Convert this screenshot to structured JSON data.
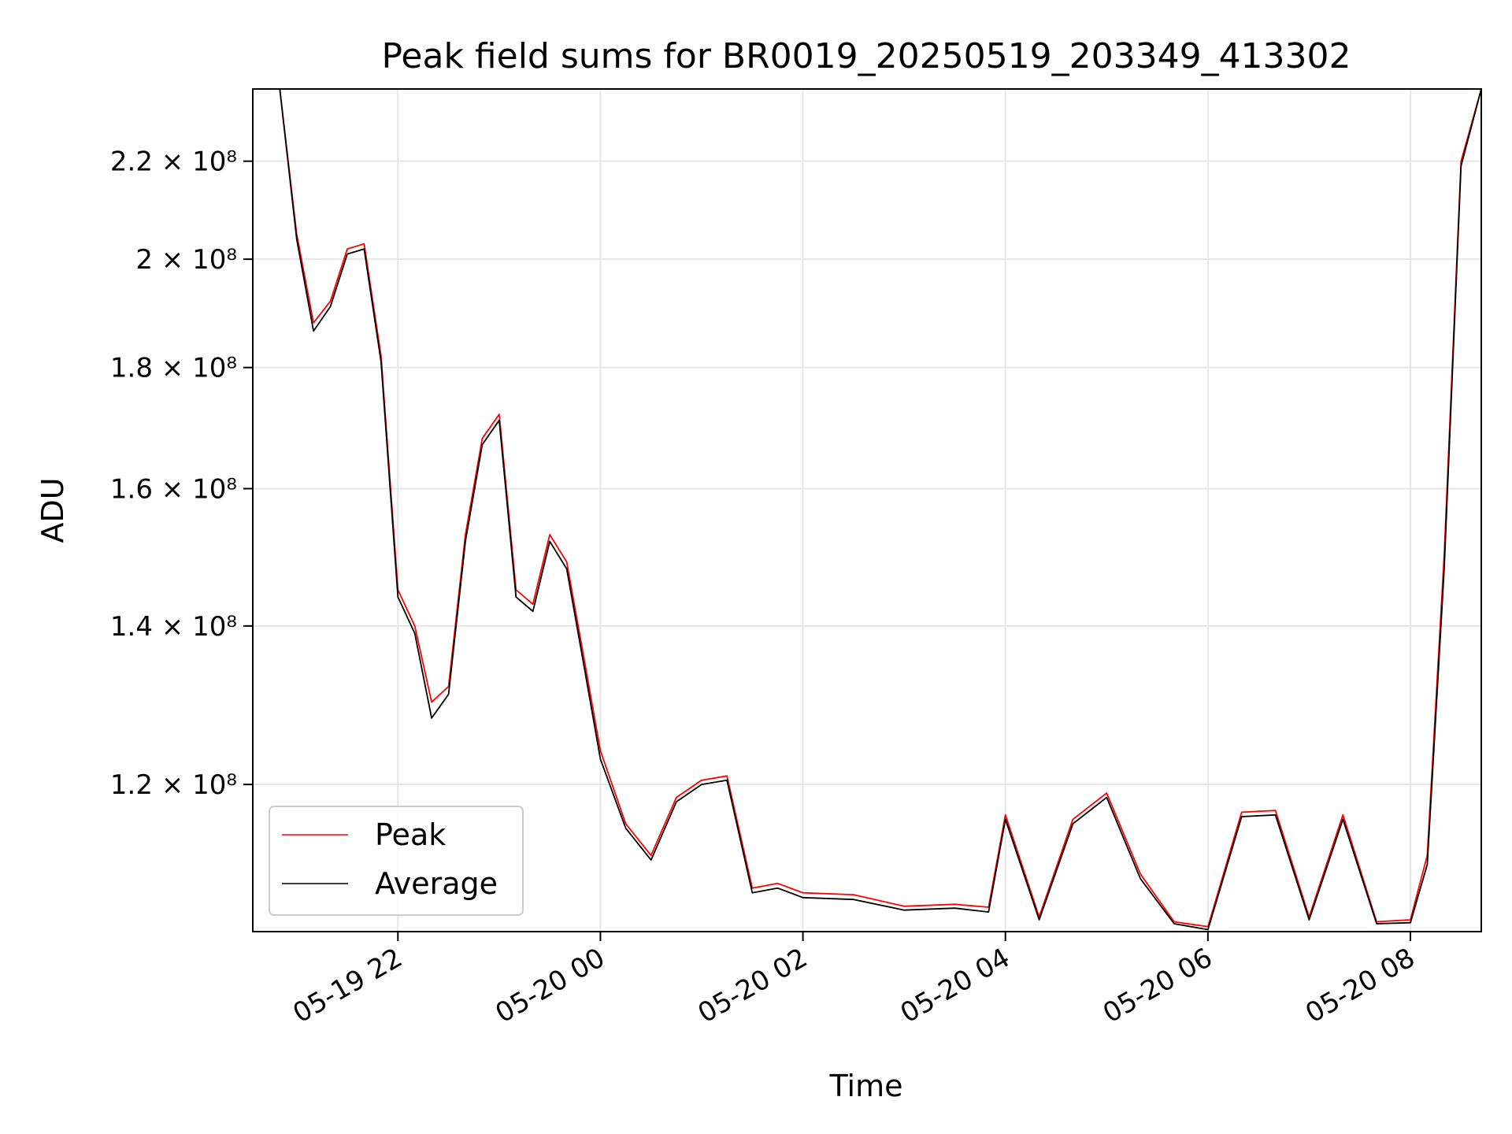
{
  "chart_data": {
    "type": "line",
    "title": "Peak field sums for BR0019_20250519_203349_413302",
    "xlabel": "Time",
    "ylabel": "ADU",
    "yscale": "log",
    "xlim": [
      "2025-05-19 20:34",
      "2025-05-20 08:42"
    ],
    "ylim": [
      104000000,
      236000000
    ],
    "x_ticks": [
      "05-19 22",
      "05-20 00",
      "05-20 02",
      "05-20 04",
      "05-20 06",
      "05-20 08"
    ],
    "y_ticks": [
      {
        "value": 120000000,
        "label": "1.2 × 10⁸"
      },
      {
        "value": 140000000,
        "label": "1.4 × 10⁸"
      },
      {
        "value": 160000000,
        "label": "1.6 × 10⁸"
      },
      {
        "value": 180000000,
        "label": "1.8 × 10⁸"
      },
      {
        "value": 200000000,
        "label": "2 × 10⁸"
      },
      {
        "value": 220000000,
        "label": "2.2 × 10⁸"
      }
    ],
    "grid": true,
    "legend_position": "lower-left",
    "series": [
      {
        "name": "Peak",
        "color": "#ff0000",
        "x": [
          "2025-05-19 20:34",
          "2025-05-19 20:50",
          "2025-05-19 21:00",
          "2025-05-19 21:10",
          "2025-05-19 21:20",
          "2025-05-19 21:30",
          "2025-05-19 21:40",
          "2025-05-19 21:50",
          "2025-05-19 22:00",
          "2025-05-19 22:10",
          "2025-05-19 22:20",
          "2025-05-19 22:30",
          "2025-05-19 22:40",
          "2025-05-19 22:50",
          "2025-05-19 23:00",
          "2025-05-19 23:10",
          "2025-05-19 23:20",
          "2025-05-19 23:30",
          "2025-05-19 23:40",
          "2025-05-19 23:50",
          "2025-05-20 00:00",
          "2025-05-20 00:15",
          "2025-05-20 00:30",
          "2025-05-20 00:45",
          "2025-05-20 01:00",
          "2025-05-20 01:15",
          "2025-05-20 01:30",
          "2025-05-20 01:45",
          "2025-05-20 02:00",
          "2025-05-20 02:30",
          "2025-05-20 03:00",
          "2025-05-20 03:30",
          "2025-05-20 03:50",
          "2025-05-20 04:00",
          "2025-05-20 04:20",
          "2025-05-20 04:40",
          "2025-05-20 05:00",
          "2025-05-20 05:20",
          "2025-05-20 05:40",
          "2025-05-20 06:00",
          "2025-05-20 06:20",
          "2025-05-20 06:40",
          "2025-05-20 07:00",
          "2025-05-20 07:20",
          "2025-05-20 07:40",
          "2025-05-20 08:00",
          "2025-05-20 08:10",
          "2025-05-20 08:20",
          "2025-05-20 08:30",
          "2025-05-20 08:42"
        ],
        "values": [
          236000000,
          236000000,
          205000000,
          188000000,
          192000000,
          202000000,
          203000000,
          182000000,
          145000000,
          140000000,
          130000000,
          132000000,
          153000000,
          168000000,
          172000000,
          145000000,
          143000000,
          153000000,
          149000000,
          136000000,
          124000000,
          115500000,
          112000000,
          118500000,
          120500000,
          121000000,
          108500000,
          109000000,
          108000000,
          107800000,
          106600000,
          106800000,
          106500000,
          116500000,
          105500000,
          116000000,
          119000000,
          110000000,
          105000000,
          104500000,
          116800000,
          117000000,
          105500000,
          116500000,
          105000000,
          105200000,
          112000000,
          150000000,
          220000000,
          236000000
        ]
      },
      {
        "name": "Average",
        "color": "#000000",
        "x": [
          "2025-05-19 20:34",
          "2025-05-19 20:50",
          "2025-05-19 21:00",
          "2025-05-19 21:10",
          "2025-05-19 21:20",
          "2025-05-19 21:30",
          "2025-05-19 21:40",
          "2025-05-19 21:50",
          "2025-05-19 22:00",
          "2025-05-19 22:10",
          "2025-05-19 22:20",
          "2025-05-19 22:30",
          "2025-05-19 22:40",
          "2025-05-19 22:50",
          "2025-05-19 23:00",
          "2025-05-19 23:10",
          "2025-05-19 23:20",
          "2025-05-19 23:30",
          "2025-05-19 23:40",
          "2025-05-19 23:50",
          "2025-05-20 00:00",
          "2025-05-20 00:15",
          "2025-05-20 00:30",
          "2025-05-20 00:45",
          "2025-05-20 01:00",
          "2025-05-20 01:15",
          "2025-05-20 01:30",
          "2025-05-20 01:45",
          "2025-05-20 02:00",
          "2025-05-20 02:30",
          "2025-05-20 03:00",
          "2025-05-20 03:30",
          "2025-05-20 03:50",
          "2025-05-20 04:00",
          "2025-05-20 04:20",
          "2025-05-20 04:40",
          "2025-05-20 05:00",
          "2025-05-20 05:20",
          "2025-05-20 05:40",
          "2025-05-20 06:00",
          "2025-05-20 06:20",
          "2025-05-20 06:40",
          "2025-05-20 07:00",
          "2025-05-20 07:20",
          "2025-05-20 07:40",
          "2025-05-20 08:00",
          "2025-05-20 08:10",
          "2025-05-20 08:20",
          "2025-05-20 08:30",
          "2025-05-20 08:42"
        ],
        "values": [
          236000000,
          236000000,
          204000000,
          186500000,
          191000000,
          201000000,
          202000000,
          181000000,
          144000000,
          139000000,
          128000000,
          131000000,
          152000000,
          167000000,
          171000000,
          144000000,
          142000000,
          152000000,
          148000000,
          135000000,
          123000000,
          115000000,
          111500000,
          118000000,
          120000000,
          120500000,
          108000000,
          108500000,
          107500000,
          107300000,
          106200000,
          106400000,
          106000000,
          116000000,
          105200000,
          115500000,
          118500000,
          109500000,
          104800000,
          104200000,
          116300000,
          116500000,
          105200000,
          116000000,
          104800000,
          104900000,
          111000000,
          148000000,
          219000000,
          236000000
        ]
      }
    ]
  }
}
